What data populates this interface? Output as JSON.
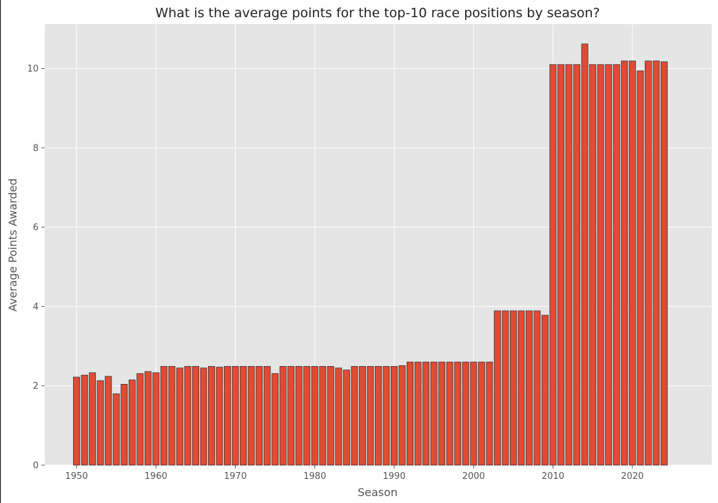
{
  "chart_data": {
    "type": "bar",
    "title": "What is the average points for the top-10 race positions by season?",
    "xlabel": "Season",
    "ylabel": "Average Points Awarded",
    "x": [
      1950,
      1951,
      1952,
      1953,
      1954,
      1955,
      1956,
      1957,
      1958,
      1959,
      1960,
      1961,
      1962,
      1963,
      1964,
      1965,
      1966,
      1967,
      1968,
      1969,
      1970,
      1971,
      1972,
      1973,
      1974,
      1975,
      1976,
      1977,
      1978,
      1979,
      1980,
      1981,
      1982,
      1983,
      1984,
      1985,
      1986,
      1987,
      1988,
      1989,
      1990,
      1991,
      1992,
      1993,
      1994,
      1995,
      1996,
      1997,
      1998,
      1999,
      2000,
      2001,
      2002,
      2003,
      2004,
      2005,
      2006,
      2007,
      2008,
      2009,
      2010,
      2011,
      2012,
      2013,
      2014,
      2015,
      2016,
      2017,
      2018,
      2019,
      2020,
      2021,
      2022,
      2023,
      2024
    ],
    "values": [
      2.22,
      2.27,
      2.33,
      2.13,
      2.24,
      1.8,
      2.04,
      2.15,
      2.31,
      2.36,
      2.33,
      2.49,
      2.49,
      2.45,
      2.49,
      2.49,
      2.45,
      2.49,
      2.47,
      2.49,
      2.49,
      2.49,
      2.49,
      2.49,
      2.49,
      2.31,
      2.49,
      2.49,
      2.49,
      2.49,
      2.49,
      2.49,
      2.49,
      2.45,
      2.4,
      2.49,
      2.49,
      2.49,
      2.49,
      2.49,
      2.49,
      2.51,
      2.6,
      2.6,
      2.6,
      2.6,
      2.6,
      2.6,
      2.6,
      2.6,
      2.6,
      2.6,
      2.6,
      3.89,
      3.89,
      3.89,
      3.89,
      3.89,
      3.89,
      3.78,
      10.1,
      10.1,
      10.1,
      10.1,
      10.62,
      10.1,
      10.1,
      10.1,
      10.1,
      10.19,
      10.19,
      9.94,
      10.19,
      10.19,
      10.17
    ],
    "xticks": [
      1950,
      1960,
      1970,
      1980,
      1990,
      2000,
      2010,
      2020
    ],
    "yticks": [
      0,
      2,
      4,
      6,
      8,
      10
    ],
    "xlim": [
      1946,
      2030
    ],
    "ylim": [
      0,
      11.12
    ],
    "grid": true,
    "colors": {
      "bar": "#E24A33",
      "bar_edge": "#333333",
      "plot_bg": "#E5E5E5",
      "grid": "#FFFFFF"
    }
  }
}
